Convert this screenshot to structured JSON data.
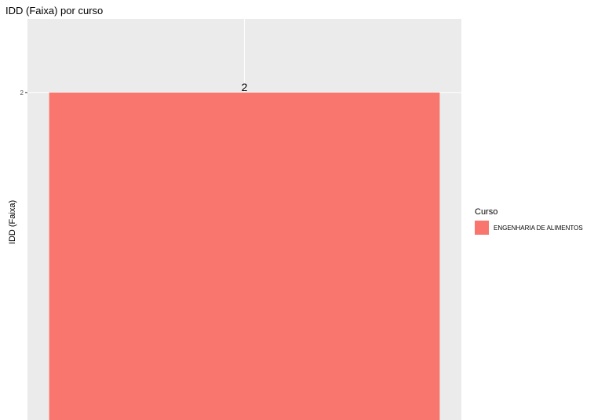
{
  "chart_data": {
    "type": "bar",
    "title": "IDD (Faixa) por curso",
    "xlabel": "",
    "ylabel": "IDD (Faixa)",
    "categories": [
      "ENGENHARIA DE ALIMENTOS"
    ],
    "values": [
      2
    ],
    "data_labels": [
      "2"
    ],
    "y_ticks": [
      2
    ],
    "y_tick_labels": [
      "2"
    ],
    "ylim": [
      0,
      2.45
    ],
    "grid": true,
    "legend": {
      "title": "Curso",
      "placement": "right",
      "entries": [
        "ENGENHARIA DE ALIMENTOS"
      ]
    },
    "colors": {
      "panel_background": "#EBEBEB",
      "grid": "#FFFFFF",
      "bar": "#F8766D"
    }
  }
}
